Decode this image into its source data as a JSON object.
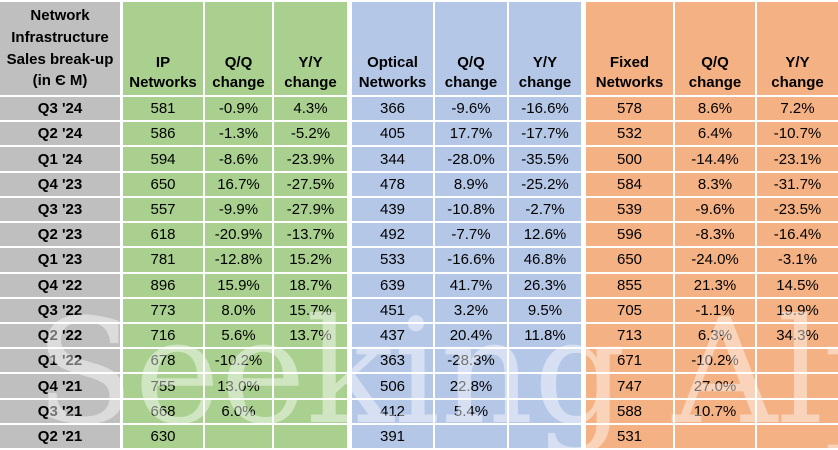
{
  "header": {
    "corner": "Network\nInfrastructure\nSales break-up\n(in Є M)",
    "columns": [
      "IP Networks",
      "Q/Q change",
      "Y/Y change",
      "Optical Networks",
      "Q/Q change",
      "Y/Y change",
      "Fixed Networks",
      "Q/Q change",
      "Y/Y change"
    ]
  },
  "chart_data": {
    "type": "table",
    "title": "Network Infrastructure Sales break-up (in Є M)",
    "categories": [
      "Q3 '24",
      "Q2 '24",
      "Q1 '24",
      "Q4 '23",
      "Q3 '23",
      "Q2 '23",
      "Q1 '23",
      "Q4 '22",
      "Q3 '22",
      "Q2 '22",
      "Q1 '22",
      "Q4 '21",
      "Q3 '21",
      "Q2 '21"
    ],
    "series": [
      {
        "name": "IP Networks",
        "values": [
          581,
          586,
          594,
          650,
          557,
          618,
          781,
          896,
          773,
          716,
          678,
          755,
          668,
          630
        ]
      },
      {
        "name": "IP Networks Q/Q change",
        "values": [
          "-0.9%",
          "-1.3%",
          "-8.6%",
          "16.7%",
          "-9.9%",
          "-20.9%",
          "-12.8%",
          "15.9%",
          "8.0%",
          "5.6%",
          "-10.2%",
          "13.0%",
          "6.0%",
          ""
        ]
      },
      {
        "name": "IP Networks Y/Y change",
        "values": [
          "4.3%",
          "-5.2%",
          "-23.9%",
          "-27.5%",
          "-27.9%",
          "-13.7%",
          "15.2%",
          "18.7%",
          "15.7%",
          "13.7%",
          "",
          "",
          "",
          ""
        ]
      },
      {
        "name": "Optical Networks",
        "values": [
          366,
          405,
          344,
          478,
          439,
          492,
          533,
          639,
          451,
          437,
          363,
          506,
          412,
          391
        ]
      },
      {
        "name": "Optical Networks Q/Q change",
        "values": [
          "-9.6%",
          "17.7%",
          "-28.0%",
          "8.9%",
          "-10.8%",
          "-7.7%",
          "-16.6%",
          "41.7%",
          "3.2%",
          "20.4%",
          "-28.3%",
          "22.8%",
          "5.4%",
          ""
        ]
      },
      {
        "name": "Optical Networks Y/Y change",
        "values": [
          "-16.6%",
          "-17.7%",
          "-35.5%",
          "-25.2%",
          "-2.7%",
          "12.6%",
          "46.8%",
          "26.3%",
          "9.5%",
          "11.8%",
          "",
          "",
          "",
          ""
        ]
      },
      {
        "name": "Fixed Networks",
        "values": [
          578,
          532,
          500,
          584,
          539,
          596,
          650,
          855,
          705,
          713,
          671,
          747,
          588,
          531
        ]
      },
      {
        "name": "Fixed Networks Q/Q change",
        "values": [
          "8.6%",
          "6.4%",
          "-14.4%",
          "8.3%",
          "-9.6%",
          "-8.3%",
          "-24.0%",
          "21.3%",
          "-1.1%",
          "6.3%",
          "-10.2%",
          "27.0%",
          "10.7%",
          ""
        ]
      },
      {
        "name": "Fixed Networks Y/Y change",
        "values": [
          "7.2%",
          "-10.7%",
          "-23.1%",
          "-31.7%",
          "-23.5%",
          "-16.4%",
          "-3.1%",
          "14.5%",
          "19.9%",
          "34.3%",
          "",
          "",
          "",
          ""
        ]
      }
    ]
  },
  "watermark": "Seeking Alpha",
  "colors": {
    "row_label_bg": "#BFBFBF",
    "ip_group_bg": "#A9D08E",
    "optical_group_bg": "#B4C7E7",
    "fixed_group_bg": "#F4B183",
    "grid_background": "#FFFFFF",
    "text": "#000000",
    "watermark": "rgba(255,255,255,0.45)"
  }
}
